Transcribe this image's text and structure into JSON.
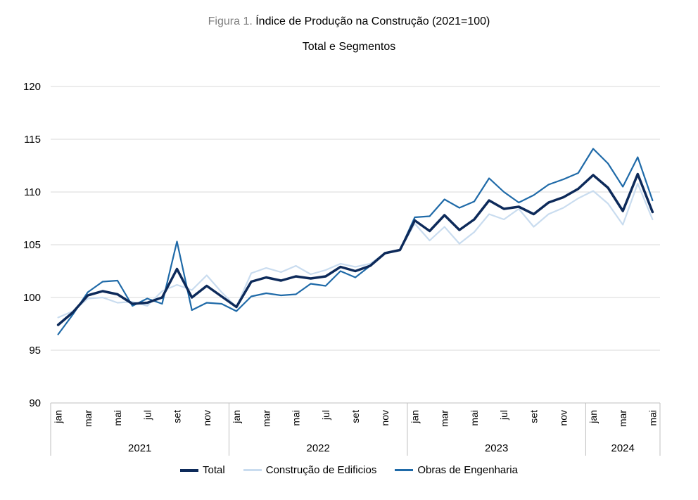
{
  "header": {
    "figure_label": "Figura 1.",
    "title": "Índice de Produção na Construção (2021=100)",
    "subtitle": "Total e Segmentos"
  },
  "colors": {
    "total": "#0d2a5a",
    "edificios": "#c9dcef",
    "engenharia": "#1f6aa8",
    "grid": "#d9d9d9",
    "axis": "#bfbfbf"
  },
  "chart_data": {
    "type": "line",
    "title": "Índice de Produção na Construção (2021=100)",
    "subtitle": "Total e Segmentos",
    "xlabel": "",
    "ylabel": "",
    "ylim": [
      90,
      120
    ],
    "yticks": [
      90,
      95,
      100,
      105,
      110,
      115,
      120
    ],
    "grid": true,
    "legend_position": "bottom",
    "x": [
      "jan",
      "fev",
      "mar",
      "abr",
      "mai",
      "jun",
      "jul",
      "ago",
      "set",
      "out",
      "nov",
      "dez",
      "jan",
      "fev",
      "mar",
      "abr",
      "mai",
      "jun",
      "jul",
      "ago",
      "set",
      "out",
      "nov",
      "dez",
      "jan",
      "fev",
      "mar",
      "abr",
      "mai",
      "jun",
      "jul",
      "ago",
      "set",
      "out",
      "nov",
      "dez",
      "jan",
      "fev",
      "mar",
      "abr",
      "mai"
    ],
    "tick_labels": [
      "jan",
      "",
      "mar",
      "",
      "mai",
      "",
      "jul",
      "",
      "set",
      "",
      "nov",
      "",
      "jan",
      "",
      "mar",
      "",
      "mai",
      "",
      "jul",
      "",
      "set",
      "",
      "nov",
      "",
      "jan",
      "",
      "mar",
      "",
      "mai",
      "",
      "jul",
      "",
      "set",
      "",
      "nov",
      "",
      "jan",
      "",
      "mar",
      "",
      "mai"
    ],
    "years": [
      {
        "label": "2021",
        "start": 0,
        "count": 12
      },
      {
        "label": "2022",
        "start": 12,
        "count": 12
      },
      {
        "label": "2023",
        "start": 24,
        "count": 12
      },
      {
        "label": "2024",
        "start": 36,
        "count": 5
      }
    ],
    "series": [
      {
        "name": "Total",
        "key": "total",
        "width": 3.5,
        "values": [
          97.4,
          98.6,
          100.2,
          100.6,
          100.3,
          99.4,
          99.5,
          100.0,
          102.7,
          100.0,
          101.1,
          100.1,
          99.1,
          101.5,
          101.9,
          101.6,
          102.0,
          101.8,
          102.0,
          102.9,
          102.5,
          103.0,
          104.2,
          104.5,
          107.3,
          106.3,
          107.8,
          106.4,
          107.4,
          109.2,
          108.4,
          108.6,
          107.9,
          109.0,
          109.5,
          110.3,
          111.6,
          110.4,
          108.2,
          111.7,
          108.1
        ]
      },
      {
        "name": "Construção de Edifícios",
        "key": "edificios",
        "width": 2.2,
        "values": [
          98.1,
          98.7,
          99.9,
          100.0,
          99.5,
          99.6,
          99.2,
          100.6,
          101.2,
          100.7,
          102.1,
          100.5,
          99.1,
          102.3,
          102.8,
          102.4,
          103.0,
          102.2,
          102.6,
          103.2,
          102.9,
          103.2,
          104.2,
          104.5,
          107.0,
          105.4,
          106.7,
          105.1,
          106.2,
          107.9,
          107.4,
          108.4,
          106.7,
          107.9,
          108.5,
          109.4,
          110.1,
          108.9,
          106.9,
          110.8,
          107.4
        ]
      },
      {
        "name": "Obras de Engenharia",
        "key": "engenharia",
        "width": 2.2,
        "values": [
          96.5,
          98.4,
          100.5,
          101.5,
          101.6,
          99.2,
          99.9,
          99.4,
          105.3,
          98.8,
          99.5,
          99.4,
          98.7,
          100.1,
          100.4,
          100.2,
          100.3,
          101.3,
          101.1,
          102.5,
          101.9,
          103.0,
          104.2,
          104.5,
          107.6,
          107.7,
          109.3,
          108.5,
          109.1,
          111.3,
          110.0,
          109.0,
          109.7,
          110.7,
          111.2,
          111.8,
          114.1,
          112.7,
          110.5,
          113.3,
          109.2
        ]
      }
    ]
  },
  "legend": {
    "items": [
      {
        "key": "total",
        "label": "Total"
      },
      {
        "key": "edificios",
        "label": "Construção de Edificios"
      },
      {
        "key": "engenharia",
        "label": "Obras de Engenharia"
      }
    ]
  }
}
